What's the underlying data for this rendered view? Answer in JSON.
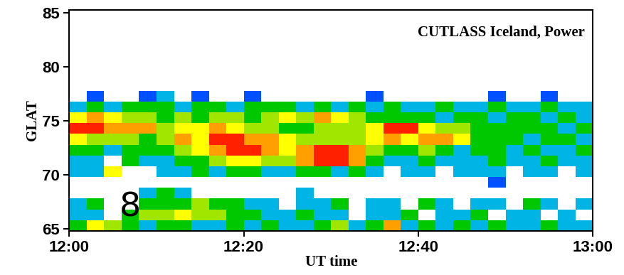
{
  "chart_data": {
    "type": "heatmap",
    "title": "CUTLASS Iceland, Power",
    "x_label": "UT time",
    "y_label": "GLAT",
    "xlim": [
      0,
      60
    ],
    "xticks": [
      {
        "value": 0,
        "label": "12:00"
      },
      {
        "value": 20,
        "label": "12:20"
      },
      {
        "value": 40,
        "label": "12:40"
      },
      {
        "value": 60,
        "label": "13:00"
      }
    ],
    "ylim": [
      64.8,
      85.3
    ],
    "yticks": [
      65,
      70,
      75,
      80,
      85
    ],
    "annotations": [
      {
        "text": "8",
        "x": 7,
        "y": 67
      }
    ],
    "color_range": [
      0,
      30
    ],
    "x_edges": [
      0,
      2,
      4,
      6,
      8,
      10,
      12,
      14,
      16,
      18,
      20,
      22,
      24,
      26,
      28,
      30,
      32,
      34,
      36,
      38,
      40,
      42,
      44,
      46,
      48,
      50,
      52,
      54,
      56,
      58,
      60
    ],
    "y_edges": [
      64.8,
      65.8,
      66.8,
      67.8,
      68.8,
      69.8,
      70.8,
      71.8,
      72.8,
      73.8,
      74.8,
      75.8,
      76.8,
      77.8
    ],
    "cells": [
      [
        12,
        22,
        16,
        12,
        10,
        14,
        12,
        10,
        8,
        12,
        10,
        14,
        10,
        8,
        12,
        16,
        10,
        12,
        24,
        10,
        12,
        8,
        14,
        10,
        12,
        8,
        10,
        12,
        8,
        10
      ],
      [
        10,
        8,
        null,
        14,
        18,
        16,
        20,
        18,
        16,
        14,
        12,
        10,
        8,
        12,
        10,
        8,
        null,
        10,
        8,
        12,
        null,
        10,
        8,
        12,
        null,
        10,
        8,
        null,
        10,
        null
      ],
      [
        8,
        12,
        null,
        null,
        12,
        14,
        12,
        16,
        12,
        14,
        10,
        8,
        null,
        10,
        8,
        12,
        null,
        8,
        10,
        null,
        12,
        8,
        null,
        10,
        8,
        null,
        12,
        10,
        null,
        8
      ],
      [
        null,
        null,
        null,
        null,
        10,
        12,
        8,
        null,
        null,
        null,
        null,
        null,
        null,
        8,
        null,
        null,
        null,
        null,
        null,
        null,
        null,
        null,
        null,
        null,
        null,
        null,
        null,
        null,
        null,
        null
      ],
      [
        null,
        null,
        null,
        null,
        null,
        null,
        null,
        null,
        null,
        null,
        null,
        null,
        null,
        null,
        null,
        null,
        null,
        null,
        null,
        null,
        null,
        null,
        null,
        null,
        5,
        null,
        null,
        null,
        null,
        null
      ],
      [
        8,
        10,
        20,
        null,
        null,
        8,
        10,
        12,
        10,
        12,
        14,
        10,
        8,
        12,
        14,
        10,
        12,
        8,
        null,
        10,
        8,
        null,
        8,
        10,
        8,
        null,
        10,
        8,
        null,
        8
      ],
      [
        10,
        8,
        null,
        12,
        10,
        8,
        12,
        14,
        16,
        20,
        22,
        18,
        16,
        24,
        28,
        28,
        24,
        14,
        10,
        8,
        12,
        10,
        8,
        10,
        12,
        8,
        10,
        12,
        8,
        10
      ],
      [
        12,
        14,
        10,
        12,
        14,
        12,
        18,
        20,
        24,
        28,
        28,
        26,
        22,
        26,
        28,
        28,
        26,
        18,
        14,
        12,
        16,
        14,
        10,
        12,
        14,
        10,
        12,
        10,
        8,
        12
      ],
      [
        20,
        18,
        16,
        16,
        14,
        16,
        24,
        22,
        28,
        28,
        26,
        24,
        22,
        18,
        16,
        18,
        18,
        20,
        24,
        22,
        26,
        24,
        22,
        14,
        12,
        12,
        10,
        14,
        12,
        10
      ],
      [
        28,
        28,
        26,
        26,
        24,
        18,
        22,
        20,
        24,
        22,
        18,
        16,
        14,
        14,
        16,
        18,
        18,
        22,
        28,
        28,
        22,
        18,
        16,
        14,
        12,
        14,
        12,
        12,
        10,
        12
      ],
      [
        22,
        24,
        20,
        18,
        16,
        14,
        16,
        14,
        18,
        16,
        14,
        16,
        20,
        18,
        24,
        22,
        16,
        14,
        12,
        14,
        12,
        10,
        12,
        14,
        10,
        12,
        14,
        10,
        12,
        10
      ],
      [
        8,
        12,
        10,
        12,
        14,
        12,
        10,
        12,
        14,
        10,
        12,
        14,
        12,
        10,
        12,
        8,
        14,
        10,
        12,
        8,
        10,
        12,
        10,
        8,
        12,
        10,
        8,
        12,
        10,
        8
      ],
      [
        null,
        5,
        null,
        null,
        5,
        8,
        null,
        5,
        null,
        null,
        5,
        null,
        null,
        null,
        null,
        null,
        null,
        5,
        null,
        null,
        null,
        null,
        null,
        null,
        5,
        null,
        null,
        5,
        null,
        null
      ]
    ]
  }
}
